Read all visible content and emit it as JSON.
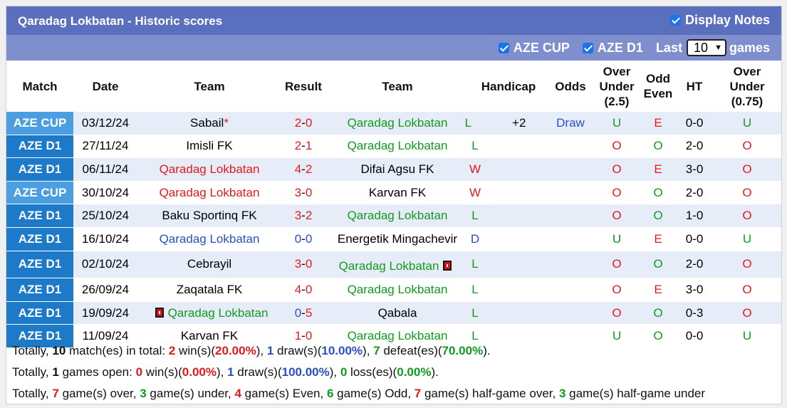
{
  "header": {
    "title": "Qaradag Lokbatan - Historic scores",
    "display_notes_label": "Display Notes",
    "display_notes_checked": true,
    "filters": [
      {
        "label": "AZE CUP",
        "checked": true
      },
      {
        "label": "AZE D1",
        "checked": true
      }
    ],
    "last_label": "Last",
    "last_value": "10",
    "games_label": "games"
  },
  "columns": [
    "Match",
    "Date",
    "Team",
    "Result",
    "Team",
    "Handicap",
    "Odds",
    "Over Under (2.5)",
    "Odd Even",
    "HT",
    "Over Under (0.75)"
  ],
  "colors": {
    "aze_cup": "#4b9fe0",
    "aze_d1": "#1d7ac8",
    "red": "#e21a1a",
    "green": "#129a1f",
    "blue": "#2a4fc4"
  },
  "rows": [
    {
      "league": "AZE CUP",
      "date": "03/12/24",
      "home": "Sabail",
      "home_star": "*",
      "home_color": "black",
      "score_home": "2",
      "score_away": "0",
      "sh_color": "red",
      "sa_color": "red",
      "away": "Qaradag Lokbatan",
      "away_color": "green",
      "wl": "L",
      "wl_color": "green",
      "handicap": "+2",
      "odds": "Draw",
      "ou": "U",
      "ou_color": "green",
      "oe": "E",
      "oe_color": "red",
      "ht": "0-0",
      "ou2": "U",
      "ou2_color": "green"
    },
    {
      "league": "AZE D1",
      "date": "27/11/24",
      "home": "Imisli FK",
      "home_color": "black",
      "score_home": "2",
      "score_away": "1",
      "sh_color": "red",
      "sa_color": "red",
      "away": "Qaradag Lokbatan",
      "away_color": "green",
      "wl": "L",
      "wl_color": "green",
      "handicap": "",
      "odds": "",
      "ou": "O",
      "ou_color": "red",
      "oe": "O",
      "oe_color": "green",
      "ht": "2-0",
      "ou2": "O",
      "ou2_color": "red"
    },
    {
      "league": "AZE D1",
      "date": "06/11/24",
      "home": "Qaradag Lokbatan",
      "home_color": "red",
      "score_home": "4",
      "score_away": "2",
      "sh_color": "red",
      "sa_color": "red",
      "away": "Difai Agsu FK",
      "away_color": "black",
      "wl": "W",
      "wl_color": "red",
      "handicap": "",
      "odds": "",
      "ou": "O",
      "ou_color": "red",
      "oe": "E",
      "oe_color": "red",
      "ht": "3-0",
      "ou2": "O",
      "ou2_color": "red"
    },
    {
      "league": "AZE CUP",
      "date": "30/10/24",
      "home": "Qaradag Lokbatan",
      "home_color": "red",
      "score_home": "3",
      "score_away": "0",
      "sh_color": "red",
      "sa_color": "red",
      "away": "Karvan FK",
      "away_color": "black",
      "wl": "W",
      "wl_color": "red",
      "handicap": "",
      "odds": "",
      "ou": "O",
      "ou_color": "red",
      "oe": "O",
      "oe_color": "green",
      "ht": "2-0",
      "ou2": "O",
      "ou2_color": "red"
    },
    {
      "league": "AZE D1",
      "date": "25/10/24",
      "home": "Baku Sportinq FK",
      "home_color": "black",
      "score_home": "3",
      "score_away": "2",
      "sh_color": "red",
      "sa_color": "red",
      "away": "Qaradag Lokbatan",
      "away_color": "green",
      "wl": "L",
      "wl_color": "green",
      "handicap": "",
      "odds": "",
      "ou": "O",
      "ou_color": "red",
      "oe": "O",
      "oe_color": "green",
      "ht": "1-0",
      "ou2": "O",
      "ou2_color": "red"
    },
    {
      "league": "AZE D1",
      "date": "16/10/24",
      "home": "Qaradag Lokbatan",
      "home_color": "blue",
      "score_home": "0",
      "score_away": "0",
      "sh_color": "blue",
      "sa_color": "blue",
      "away": "Energetik Mingachevir",
      "away_color": "black",
      "wl": "D",
      "wl_color": "blue",
      "handicap": "",
      "odds": "",
      "ou": "U",
      "ou_color": "green",
      "oe": "E",
      "oe_color": "red",
      "ht": "0-0",
      "ou2": "U",
      "ou2_color": "green"
    },
    {
      "league": "AZE D1",
      "date": "02/10/24",
      "home": "Cebrayil",
      "home_color": "black",
      "score_home": "3",
      "score_away": "0",
      "sh_color": "red",
      "sa_color": "red",
      "away": "Qaradag Lokbatan",
      "away_color": "green",
      "away_card": "after",
      "wl": "L",
      "wl_color": "green",
      "handicap": "",
      "odds": "",
      "ou": "O",
      "ou_color": "red",
      "oe": "O",
      "oe_color": "green",
      "ht": "2-0",
      "ou2": "O",
      "ou2_color": "red"
    },
    {
      "league": "AZE D1",
      "date": "26/09/24",
      "home": "Zaqatala FK",
      "home_color": "black",
      "score_home": "4",
      "score_away": "0",
      "sh_color": "red",
      "sa_color": "red",
      "away": "Qaradag Lokbatan",
      "away_color": "green",
      "wl": "L",
      "wl_color": "green",
      "handicap": "",
      "odds": "",
      "ou": "O",
      "ou_color": "red",
      "oe": "E",
      "oe_color": "red",
      "ht": "3-0",
      "ou2": "O",
      "ou2_color": "red"
    },
    {
      "league": "AZE D1",
      "date": "19/09/24",
      "home": "Qaradag Lokbatan",
      "home_color": "green",
      "home_card": "before",
      "score_home": "0",
      "score_away": "5",
      "sh_color": "blue",
      "sa_color": "red",
      "away": "Qabala",
      "away_color": "black",
      "wl": "L",
      "wl_color": "green",
      "handicap": "",
      "odds": "",
      "ou": "O",
      "ou_color": "red",
      "oe": "O",
      "oe_color": "green",
      "ht": "0-3",
      "ou2": "O",
      "ou2_color": "red"
    },
    {
      "league": "AZE D1",
      "date": "11/09/24",
      "home": "Karvan FK",
      "home_color": "black",
      "score_home": "1",
      "score_away": "0",
      "sh_color": "red",
      "sa_color": "red",
      "away": "Qaradag Lokbatan",
      "away_color": "green",
      "wl": "L",
      "wl_color": "green",
      "handicap": "",
      "odds": "",
      "ou": "U",
      "ou_color": "green",
      "oe": "O",
      "oe_color": "green",
      "ht": "0-0",
      "ou2": "U",
      "ou2_color": "green"
    }
  ],
  "summary": [
    [
      {
        "t": "Totally, "
      },
      {
        "t": "10",
        "b": true
      },
      {
        "t": " match(es) in total: "
      },
      {
        "t": "2",
        "c": "red",
        "b": true
      },
      {
        "t": " win(s)("
      },
      {
        "t": "20.00%",
        "c": "red",
        "b": true
      },
      {
        "t": "), "
      },
      {
        "t": "1",
        "c": "blue",
        "b": true
      },
      {
        "t": " draw(s)("
      },
      {
        "t": "10.00%",
        "c": "blue",
        "b": true
      },
      {
        "t": "), "
      },
      {
        "t": "7",
        "c": "green",
        "b": true
      },
      {
        "t": " defeat(es)("
      },
      {
        "t": "70.00%",
        "c": "green",
        "b": true
      },
      {
        "t": ")."
      }
    ],
    [
      {
        "t": "Totally, "
      },
      {
        "t": "1",
        "b": true
      },
      {
        "t": " games open: "
      },
      {
        "t": "0",
        "c": "red",
        "b": true
      },
      {
        "t": " win(s)("
      },
      {
        "t": "0.00%",
        "c": "red",
        "b": true
      },
      {
        "t": "), "
      },
      {
        "t": "1",
        "c": "blue",
        "b": true
      },
      {
        "t": " draw(s)("
      },
      {
        "t": "100.00%",
        "c": "blue",
        "b": true
      },
      {
        "t": "), "
      },
      {
        "t": "0",
        "c": "green",
        "b": true
      },
      {
        "t": " loss(es)("
      },
      {
        "t": "0.00%",
        "c": "green",
        "b": true
      },
      {
        "t": ")."
      }
    ],
    [
      {
        "t": "Totally, "
      },
      {
        "t": "7",
        "c": "red",
        "b": true
      },
      {
        "t": " game(s) over, "
      },
      {
        "t": "3",
        "c": "green",
        "b": true
      },
      {
        "t": " game(s) under, "
      },
      {
        "t": "4",
        "c": "red",
        "b": true
      },
      {
        "t": " game(s) Even, "
      },
      {
        "t": "6",
        "c": "green",
        "b": true
      },
      {
        "t": " game(s) Odd, "
      },
      {
        "t": "7",
        "c": "red",
        "b": true
      },
      {
        "t": " game(s) half-game over, "
      },
      {
        "t": "3",
        "c": "green",
        "b": true
      },
      {
        "t": " game(s) half-game under"
      }
    ]
  ]
}
